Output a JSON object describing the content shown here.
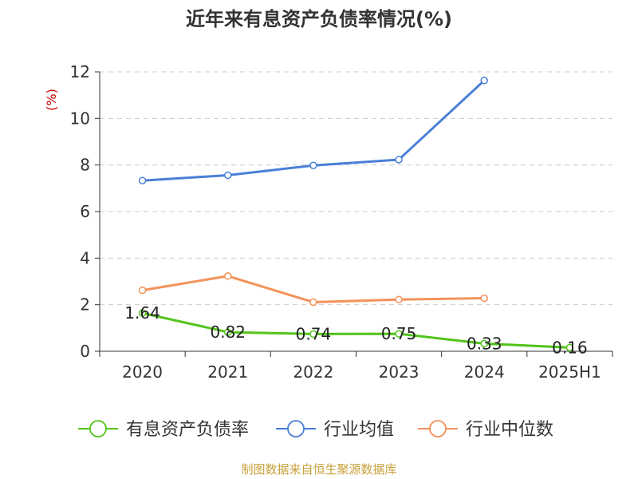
{
  "chart_data": {
    "type": "line",
    "title": "近年来有息资产负债率情况(%)",
    "ylabel": "(%)",
    "categories": [
      "2020",
      "2021",
      "2022",
      "2023",
      "2024",
      "2025H1"
    ],
    "ylim": [
      0,
      12
    ],
    "yticks": [
      "0",
      "2",
      "4",
      "6",
      "8",
      "10",
      "12"
    ],
    "grid": true,
    "legend_position": "bottom",
    "series": [
      {
        "name": "有息资产负债率",
        "color": "#52c41a",
        "values": [
          1.64,
          0.82,
          0.74,
          0.75,
          0.33,
          0.16
        ],
        "labels": [
          "1.64",
          "0.82",
          "0.74",
          "0.75",
          "0.33",
          "0.16"
        ]
      },
      {
        "name": "行业均值",
        "color": "#4a7fd8",
        "values": [
          7.33,
          7.56,
          7.98,
          8.23,
          11.63,
          null
        ]
      },
      {
        "name": "行业中位数",
        "color": "#f3925a",
        "values": [
          2.62,
          3.23,
          2.11,
          2.22,
          2.28,
          null
        ]
      }
    ]
  },
  "source": "制图数据来自恒生聚源数据库",
  "colors": {
    "title": "#333333",
    "axis": "#333333",
    "grid": "#cccccc",
    "ylabel": "#cc0000",
    "source": "#c8a13a"
  }
}
